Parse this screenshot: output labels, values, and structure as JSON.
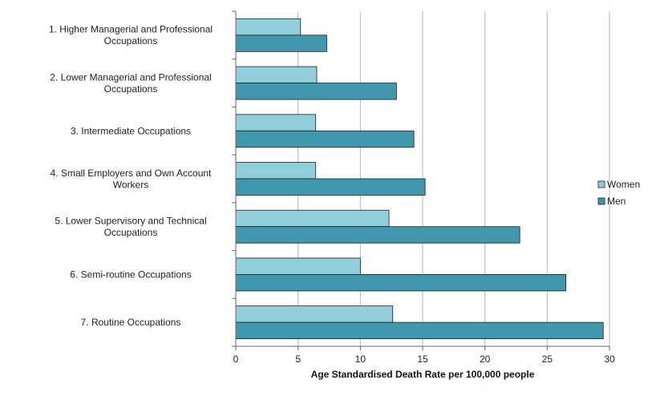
{
  "chart_data": {
    "type": "bar",
    "orientation": "horizontal",
    "categories": [
      [
        "1. Higher Managerial and Professional",
        "Occupations"
      ],
      [
        "2. Lower Managerial and Professional",
        "Occupations"
      ],
      [
        "3. Intermediate Occupations"
      ],
      [
        "4. Small Employers and Own Account",
        "Workers"
      ],
      [
        "5. Lower Supervisory and Technical",
        "Occupations"
      ],
      [
        "6. Semi-routine Occupations"
      ],
      [
        "7. Routine Occupations"
      ]
    ],
    "series": [
      {
        "name": "Women",
        "color": "#92cddc",
        "values": [
          5.2,
          6.5,
          6.4,
          6.4,
          12.3,
          10.0,
          12.6
        ]
      },
      {
        "name": "Men",
        "color": "#4197ae",
        "values": [
          7.3,
          12.9,
          14.3,
          15.2,
          22.8,
          26.5,
          29.5
        ]
      }
    ],
    "xlabel": "Age Standardised Death Rate per 100,000 people",
    "xlim": [
      0,
      30
    ],
    "xticks": [
      "0",
      "5",
      "10",
      "15",
      "20",
      "25",
      "30"
    ],
    "grid": true,
    "legend_position": "right"
  }
}
